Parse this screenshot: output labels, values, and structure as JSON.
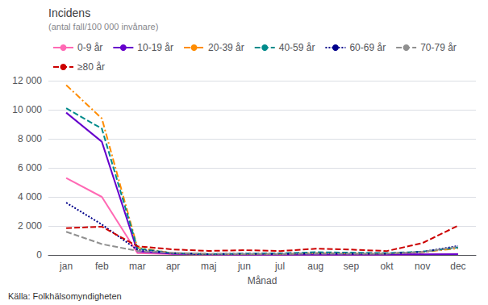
{
  "chart_data": {
    "type": "line",
    "title": "Incidens",
    "subtitle": "(antal fall/100 000 invånare)",
    "xlabel": "Månad",
    "annotations": [
      "Källa: Folkhälsomyndigheten"
    ],
    "categories": [
      "jan",
      "feb",
      "mar",
      "apr",
      "maj",
      "jun",
      "jul",
      "aug",
      "sep",
      "okt",
      "nov",
      "dec"
    ],
    "series": [
      {
        "name": "0-9 år",
        "color": "#ff69b4",
        "line_style": "solid",
        "values": [
          5300,
          4000,
          120,
          50,
          30,
          30,
          30,
          30,
          30,
          30,
          50,
          70
        ]
      },
      {
        "name": "10-19 år",
        "color": "#6600cc",
        "line_style": "solid",
        "values": [
          9800,
          7800,
          250,
          80,
          40,
          30,
          30,
          30,
          30,
          30,
          40,
          60
        ]
      },
      {
        "name": "20-39 år",
        "color": "#ff8c00",
        "line_style": "dashdot",
        "values": [
          11700,
          9400,
          500,
          120,
          60,
          60,
          70,
          130,
          100,
          100,
          200,
          460
        ]
      },
      {
        "name": "40-59 år",
        "color": "#008b8b",
        "line_style": "dashed",
        "values": [
          10100,
          8700,
          450,
          120,
          60,
          100,
          110,
          190,
          160,
          130,
          230,
          510
        ]
      },
      {
        "name": "60-69 år",
        "color": "#00008b",
        "line_style": "dotted",
        "values": [
          3600,
          2100,
          350,
          130,
          60,
          70,
          70,
          110,
          90,
          90,
          210,
          620
        ]
      },
      {
        "name": "70-79 år",
        "color": "#909090",
        "line_style": "dashed",
        "values": [
          1600,
          750,
          280,
          150,
          90,
          70,
          70,
          90,
          90,
          90,
          210,
          560
        ]
      },
      {
        "name": "≥80 år",
        "color": "#cc0000",
        "line_style": "dashed",
        "values": [
          1850,
          1950,
          600,
          380,
          280,
          330,
          270,
          430,
          370,
          270,
          820,
          2020
        ]
      }
    ],
    "ylim": [
      0,
      12000
    ],
    "yticks": [
      0,
      {
        "value": 2000,
        "label": "2 000"
      },
      {
        "value": 4000,
        "label": "4 000"
      },
      {
        "value": 6000,
        "label": "6 000"
      },
      {
        "value": 8000,
        "label": "8 000"
      },
      {
        "value": 10000,
        "label": "10 000"
      },
      {
        "value": 12000,
        "label": "12 000"
      }
    ],
    "grid": true,
    "legend": "upper left"
  }
}
